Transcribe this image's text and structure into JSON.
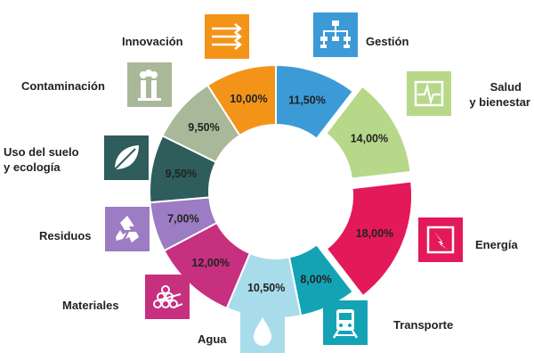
{
  "chart_data": {
    "type": "pie",
    "variant": "donut",
    "unit": "%",
    "segments": [
      {
        "label": "Gestión",
        "value": 11.5,
        "display": "11,50%",
        "color": "#3c9ad6",
        "icon": "org-chart-icon",
        "exploded": false
      },
      {
        "label": "Salud y bienestar",
        "value": 14.0,
        "display": "14,00%",
        "color": "#b6d888",
        "icon": "heart-monitor-icon",
        "exploded": true
      },
      {
        "label": "Energía",
        "value": 18.0,
        "display": "18,00%",
        "color": "#e4195a",
        "icon": "lightning-icon",
        "exploded": true
      },
      {
        "label": "Transporte",
        "value": 8.0,
        "display": "8,00%",
        "color": "#13a3b5",
        "icon": "train-icon",
        "exploded": false
      },
      {
        "label": "Agua",
        "value": 10.5,
        "display": "10,50%",
        "color": "#a9dcea",
        "icon": "water-drop-icon",
        "exploded": false
      },
      {
        "label": "Materiales",
        "value": 12.0,
        "display": "12,00%",
        "color": "#c72f7f",
        "icon": "logs-icon",
        "exploded": false
      },
      {
        "label": "Residuos",
        "value": 7.0,
        "display": "7,00%",
        "color": "#9c7cc2",
        "icon": "recycle-icon",
        "exploded": false
      },
      {
        "label": "Uso del suelo y ecología",
        "value": 9.5,
        "display": "9,50%",
        "color": "#2e5d5b",
        "icon": "leaf-icon",
        "exploded": false
      },
      {
        "label": "Contaminación",
        "value": 9.5,
        "display": "9,50%",
        "color": "#a8b898",
        "icon": "factory-smoke-icon",
        "exploded": false
      },
      {
        "label": "Innovación",
        "value": 10.0,
        "display": "10,00%",
        "color": "#f39419",
        "icon": "arrows-innovation-icon",
        "exploded": false
      }
    ]
  },
  "labels": {
    "gestion": "Gestión",
    "salud_line1": "Salud",
    "salud_line2": "y bienestar",
    "energia": "Energía",
    "transporte": "Transporte",
    "agua": "Agua",
    "materiales": "Materiales",
    "residuos": "Residuos",
    "suelo_line1": "Uso del suelo",
    "suelo_line2": "y ecología",
    "contaminacion": "Contaminación",
    "innovacion": "Innovación"
  }
}
